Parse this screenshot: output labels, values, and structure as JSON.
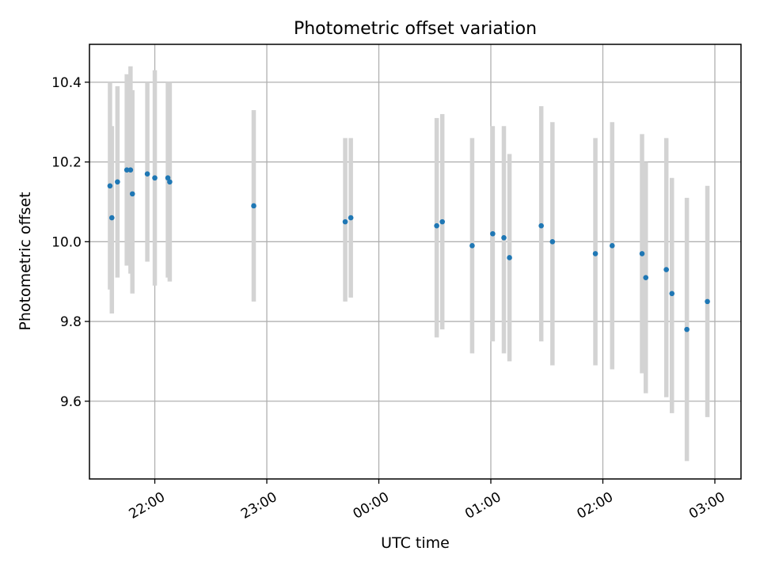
{
  "chart_data": {
    "type": "scatter",
    "title": "Photometric offset variation",
    "xlabel": "UTC time",
    "ylabel": "Photometric offset",
    "x_axis_type": "time",
    "xlim": [
      "21:25",
      "03:14"
    ],
    "ylim": [
      9.405,
      10.495
    ],
    "x_ticks": [
      "22:00",
      "23:00",
      "00:00",
      "01:00",
      "02:00",
      "03:00"
    ],
    "y_ticks": [
      "9.6",
      "9.8",
      "10.0",
      "10.2",
      "10.4"
    ],
    "grid": true,
    "legend": "none",
    "series": [
      {
        "marker_color": "#1f77b4",
        "errorbar_color": "#d3d3d3",
        "points": [
          {
            "time": "21:36",
            "value": 10.14,
            "low": 9.88,
            "high": 10.4
          },
          {
            "time": "21:37",
            "value": 10.06,
            "low": 9.82,
            "high": 10.29
          },
          {
            "time": "21:40",
            "value": 10.15,
            "low": 9.91,
            "high": 10.39
          },
          {
            "time": "21:45",
            "value": 10.18,
            "low": 9.94,
            "high": 10.42
          },
          {
            "time": "21:47",
            "value": 10.18,
            "low": 9.92,
            "high": 10.44
          },
          {
            "time": "21:48",
            "value": 10.12,
            "low": 9.87,
            "high": 10.38
          },
          {
            "time": "21:56",
            "value": 10.17,
            "low": 9.95,
            "high": 10.4
          },
          {
            "time": "22:00",
            "value": 10.16,
            "low": 9.89,
            "high": 10.43
          },
          {
            "time": "22:07",
            "value": 10.16,
            "low": 9.91,
            "high": 10.4
          },
          {
            "time": "22:08",
            "value": 10.15,
            "low": 9.9,
            "high": 10.4
          },
          {
            "time": "22:53",
            "value": 10.09,
            "low": 9.85,
            "high": 10.33
          },
          {
            "time": "23:42",
            "value": 10.05,
            "low": 9.85,
            "high": 10.26
          },
          {
            "time": "23:45",
            "value": 10.06,
            "low": 9.86,
            "high": 10.26
          },
          {
            "time": "00:31",
            "value": 10.04,
            "low": 9.76,
            "high": 10.31
          },
          {
            "time": "00:34",
            "value": 10.05,
            "low": 9.78,
            "high": 10.32
          },
          {
            "time": "00:50",
            "value": 9.99,
            "low": 9.72,
            "high": 10.26
          },
          {
            "time": "01:01",
            "value": 10.02,
            "low": 9.75,
            "high": 10.29
          },
          {
            "time": "01:07",
            "value": 10.01,
            "low": 9.72,
            "high": 10.29
          },
          {
            "time": "01:10",
            "value": 9.96,
            "low": 9.7,
            "high": 10.22
          },
          {
            "time": "01:27",
            "value": 10.04,
            "low": 9.75,
            "high": 10.34
          },
          {
            "time": "01:33",
            "value": 10.0,
            "low": 9.69,
            "high": 10.3
          },
          {
            "time": "01:56",
            "value": 9.97,
            "low": 9.69,
            "high": 10.26
          },
          {
            "time": "02:05",
            "value": 9.99,
            "low": 9.68,
            "high": 10.3
          },
          {
            "time": "02:21",
            "value": 9.97,
            "low": 9.67,
            "high": 10.27
          },
          {
            "time": "02:23",
            "value": 9.91,
            "low": 9.62,
            "high": 10.2
          },
          {
            "time": "02:34",
            "value": 9.93,
            "low": 9.61,
            "high": 10.26
          },
          {
            "time": "02:37",
            "value": 9.87,
            "low": 9.57,
            "high": 10.16
          },
          {
            "time": "02:45",
            "value": 9.78,
            "low": 9.45,
            "high": 10.11
          },
          {
            "time": "02:56",
            "value": 9.85,
            "low": 9.56,
            "high": 10.14
          }
        ]
      }
    ]
  }
}
